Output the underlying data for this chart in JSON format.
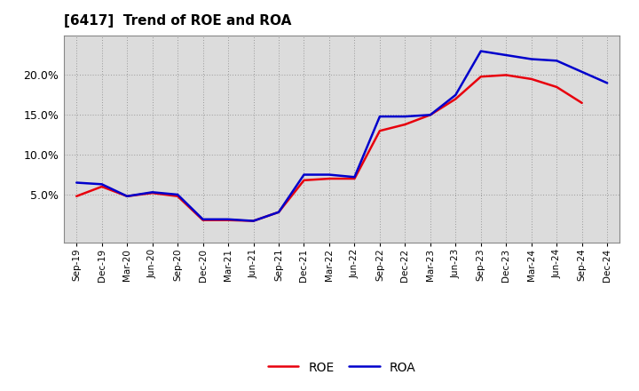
{
  "title": "[6417]  Trend of ROE and ROA",
  "x_labels": [
    "Sep-19",
    "Dec-19",
    "Mar-20",
    "Jun-20",
    "Sep-20",
    "Dec-20",
    "Mar-21",
    "Jun-21",
    "Sep-21",
    "Dec-21",
    "Mar-22",
    "Jun-22",
    "Sep-22",
    "Dec-22",
    "Mar-23",
    "Jun-23",
    "Sep-23",
    "Dec-23",
    "Mar-24",
    "Jun-24",
    "Sep-24",
    "Dec-24"
  ],
  "ROE": [
    4.8,
    6.0,
    4.8,
    5.2,
    4.8,
    1.8,
    1.8,
    1.7,
    2.8,
    6.8,
    7.0,
    7.0,
    13.0,
    13.8,
    15.0,
    17.0,
    19.8,
    20.0,
    19.5,
    18.5,
    16.5,
    null
  ],
  "ROA": [
    6.5,
    6.3,
    4.8,
    5.3,
    5.0,
    1.9,
    1.9,
    1.7,
    2.8,
    7.5,
    7.5,
    7.2,
    14.8,
    14.8,
    15.0,
    17.5,
    23.0,
    22.5,
    22.0,
    21.8,
    null,
    19.0
  ],
  "ROE_color": "#e8000d",
  "ROA_color": "#0000cc",
  "grid_color": "#aaaaaa",
  "bg_color": "#ffffff",
  "plot_bg_color": "#dcdcdc",
  "ylim": [
    -1,
    25
  ],
  "yticks": [
    5.0,
    10.0,
    15.0,
    20.0
  ],
  "ytick_labels": [
    "5.0%",
    "10.0%",
    "15.0%",
    "20.0%"
  ]
}
